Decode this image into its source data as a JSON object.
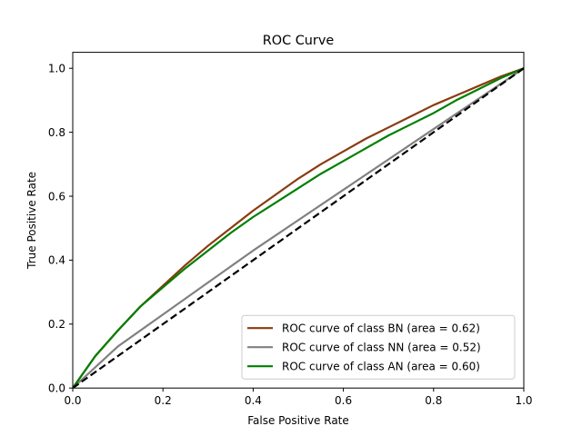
{
  "chart_data": {
    "type": "line",
    "title": "ROC Curve",
    "xlabel": "False Positive Rate",
    "ylabel": "True Positive Rate",
    "xlim": [
      0.0,
      1.0
    ],
    "ylim": [
      0.0,
      1.05
    ],
    "xticks": [
      0.0,
      0.2,
      0.4,
      0.6,
      0.8,
      1.0
    ],
    "xtick_labels": [
      "0.0",
      "0.2",
      "0.4",
      "0.6",
      "0.8",
      "1.0"
    ],
    "yticks": [
      0.0,
      0.2,
      0.4,
      0.6,
      0.8,
      1.0
    ],
    "ytick_labels": [
      "0.0",
      "0.2",
      "0.4",
      "0.6",
      "0.8",
      "1.0"
    ],
    "grid": false,
    "legend_position": "lower-right",
    "series": [
      {
        "name": "ROC curve of class BN (area = 0.62)",
        "color": "#8b3a0f",
        "x": [
          0.0,
          0.05,
          0.1,
          0.15,
          0.2,
          0.25,
          0.3,
          0.35,
          0.4,
          0.45,
          0.5,
          0.55,
          0.6,
          0.65,
          0.7,
          0.75,
          0.8,
          0.85,
          0.9,
          0.95,
          1.0
        ],
        "y": [
          0.0,
          0.1,
          0.18,
          0.255,
          0.32,
          0.385,
          0.445,
          0.5,
          0.555,
          0.605,
          0.655,
          0.7,
          0.74,
          0.78,
          0.815,
          0.85,
          0.885,
          0.915,
          0.945,
          0.975,
          1.0
        ]
      },
      {
        "name": "ROC curve of class NN (area = 0.52)",
        "color": "#808080",
        "x": [
          0.0,
          0.1,
          0.2,
          0.3,
          0.4,
          0.5,
          0.6,
          0.7,
          0.8,
          0.9,
          1.0
        ],
        "y": [
          0.0,
          0.13,
          0.23,
          0.33,
          0.43,
          0.525,
          0.62,
          0.715,
          0.81,
          0.905,
          1.0
        ]
      },
      {
        "name": "ROC curve of class AN (area = 0.60)",
        "color": "#007f00",
        "x": [
          0.0,
          0.05,
          0.1,
          0.15,
          0.2,
          0.25,
          0.3,
          0.35,
          0.4,
          0.45,
          0.5,
          0.55,
          0.6,
          0.65,
          0.7,
          0.75,
          0.8,
          0.85,
          0.9,
          0.95,
          1.0
        ],
        "y": [
          0.0,
          0.1,
          0.18,
          0.255,
          0.315,
          0.375,
          0.43,
          0.485,
          0.535,
          0.58,
          0.625,
          0.67,
          0.71,
          0.75,
          0.79,
          0.825,
          0.86,
          0.9,
          0.935,
          0.97,
          1.0
        ]
      }
    ],
    "reference_line": {
      "style": "dashed",
      "color": "#000000",
      "x": [
        0.0,
        1.0
      ],
      "y": [
        0.0,
        1.0
      ]
    }
  }
}
